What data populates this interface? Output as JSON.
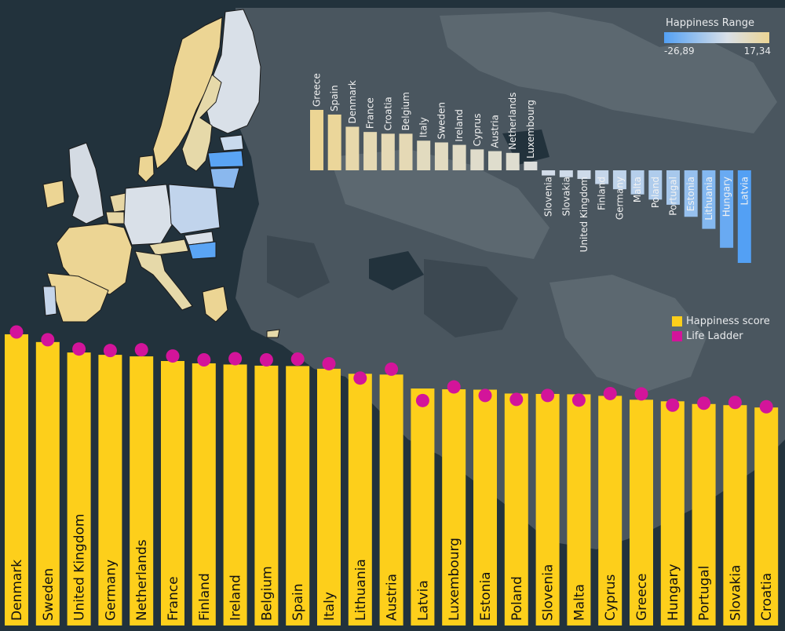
{
  "colors": {
    "background": "#22323c",
    "map_land": "#4a565f",
    "map_land_light": "#5c6870",
    "happiness_bar": "#fdcf1b",
    "life_ladder_dot": "#d3149a",
    "range_low": "#53a0f4",
    "range_mid": "#d9e0e8",
    "range_high": "#ecd594",
    "border_line": "#1a1a1a"
  },
  "legend": {
    "range_title": "Happiness Range",
    "range_min_label": "-26,89",
    "range_max_label": "17,34",
    "items": [
      {
        "label": "Happiness score",
        "color": "#fdcf1b"
      },
      {
        "label": "Life Ladder",
        "color": "#d3149a"
      }
    ]
  },
  "chart_data": [
    {
      "type": "bar",
      "description_key": "diverging",
      "title": "",
      "categories": [
        "Greece",
        "Spain",
        "Denmark",
        "France",
        "Croatia",
        "Belgium",
        "Italy",
        "Sweden",
        "Ireland",
        "Cyprus",
        "Austria",
        "Netherlands",
        "Luxembourg",
        "Slovenia",
        "Slovakia",
        "United Kingdom",
        "Finland",
        "Germany",
        "Malta",
        "Poland",
        "Portugal",
        "Estonia",
        "Lithuania",
        "Hungary",
        "Latvia"
      ],
      "values": [
        17.34,
        16.0,
        12.5,
        11.0,
        10.5,
        10.5,
        8.5,
        8.0,
        7.3,
        6.0,
        5.5,
        5.0,
        2.5,
        -1.5,
        -2.0,
        -2.5,
        -4.0,
        -5.5,
        -7.0,
        -8.5,
        -10.0,
        -13.5,
        -17.0,
        -22.5,
        -26.89
      ],
      "ylim": [
        -26.89,
        17.34
      ]
    },
    {
      "type": "bar",
      "title": "",
      "categories": [
        "Denmark",
        "Sweden",
        "United Kingdom",
        "Germany",
        "Netherlands",
        "France",
        "Finland",
        "Ireland",
        "Belgium",
        "Spain",
        "Italy",
        "Lithuania",
        "Austria",
        "Latvia",
        "Luxembourg",
        "Estonia",
        "Poland",
        "Slovenia",
        "Malta",
        "Cyprus",
        "Greece",
        "Hungary",
        "Portugal",
        "Slovakia",
        "Croatia"
      ],
      "series": [
        {
          "name": "Happiness score",
          "values": [
            7.52,
            7.32,
            7.05,
            6.99,
            6.95,
            6.83,
            6.77,
            6.74,
            6.71,
            6.7,
            6.63,
            6.5,
            6.48,
            6.12,
            6.1,
            6.09,
            5.99,
            5.98,
            5.97,
            5.93,
            5.83,
            5.79,
            5.72,
            5.69,
            5.63
          ]
        },
        {
          "name": "Life Ladder",
          "values": [
            7.58,
            7.38,
            7.14,
            7.1,
            7.12,
            6.96,
            6.86,
            6.89,
            6.86,
            6.88,
            6.76,
            6.39,
            6.62,
            5.81,
            6.16,
            5.94,
            5.84,
            5.94,
            5.82,
            5.99,
            5.98,
            5.69,
            5.74,
            5.76,
            5.65
          ]
        }
      ],
      "ylim": [
        0,
        7.6
      ]
    }
  ]
}
